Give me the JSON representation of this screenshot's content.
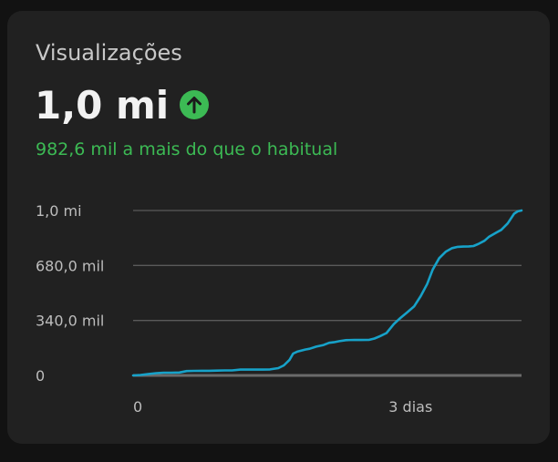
{
  "card": {
    "title": "Visualizações",
    "value": "1,0 mi",
    "trend_icon": "arrow-up-circle-icon",
    "subtitle": "982,6 mil a mais do que o habitual"
  },
  "colors": {
    "background": "#121212",
    "card": "#212121",
    "accent_green": "#3cba54",
    "line": "#17a2c9",
    "grid": "#5a5a5a",
    "baseline": "#6a6a6a"
  },
  "chart_data": {
    "type": "line",
    "title": "",
    "xlabel": "",
    "ylabel": "",
    "ylim": [
      0,
      1020000
    ],
    "xlim": [
      0,
      4.2
    ],
    "y_ticks": [
      {
        "value": 0,
        "label": "0"
      },
      {
        "value": 340000,
        "label": "340,0 mil"
      },
      {
        "value": 680000,
        "label": "680,0 mil"
      },
      {
        "value": 1020000,
        "label": "1,0 mi"
      }
    ],
    "x_ticks": [
      {
        "value": 0,
        "label": "0"
      },
      {
        "value": 3,
        "label": "3 dias"
      }
    ],
    "grid": true,
    "series": [
      {
        "x": [
          0,
          0.08,
          0.16,
          0.25,
          0.33,
          0.41,
          0.5,
          0.58,
          0.66,
          0.74,
          0.82,
          0.91,
          0.99,
          1.07,
          1.16,
          1.24,
          1.32,
          1.4,
          1.48,
          1.57,
          1.63,
          1.69,
          1.73,
          1.78,
          1.86,
          1.91,
          1.98,
          2.06,
          2.12,
          2.17,
          2.23,
          2.3,
          2.39,
          2.47,
          2.55,
          2.61,
          2.67,
          2.74,
          2.82,
          2.89,
          2.96,
          3.04,
          3.11,
          3.18,
          3.24,
          3.31,
          3.38,
          3.45,
          3.51,
          3.57,
          3.63,
          3.68,
          3.74,
          3.8,
          3.85,
          3.91,
          3.98,
          4.05,
          4.12,
          4.16,
          4.2
        ],
        "y": [
          0,
          3000,
          8000,
          14000,
          17000,
          17000,
          18000,
          27000,
          28000,
          29000,
          29000,
          30000,
          31000,
          31000,
          36000,
          36000,
          36000,
          36000,
          37000,
          45000,
          62000,
          95000,
          135000,
          148000,
          160000,
          165000,
          178000,
          188000,
          202000,
          205000,
          212000,
          218000,
          220000,
          219000,
          220000,
          228000,
          243000,
          262000,
          318000,
          355000,
          388000,
          428000,
          490000,
          565000,
          655000,
          725000,
          765000,
          787000,
          795000,
          797000,
          798000,
          800000,
          815000,
          833000,
          858000,
          878000,
          900000,
          940000,
          1000000,
          1015000,
          1020000
        ]
      }
    ]
  }
}
